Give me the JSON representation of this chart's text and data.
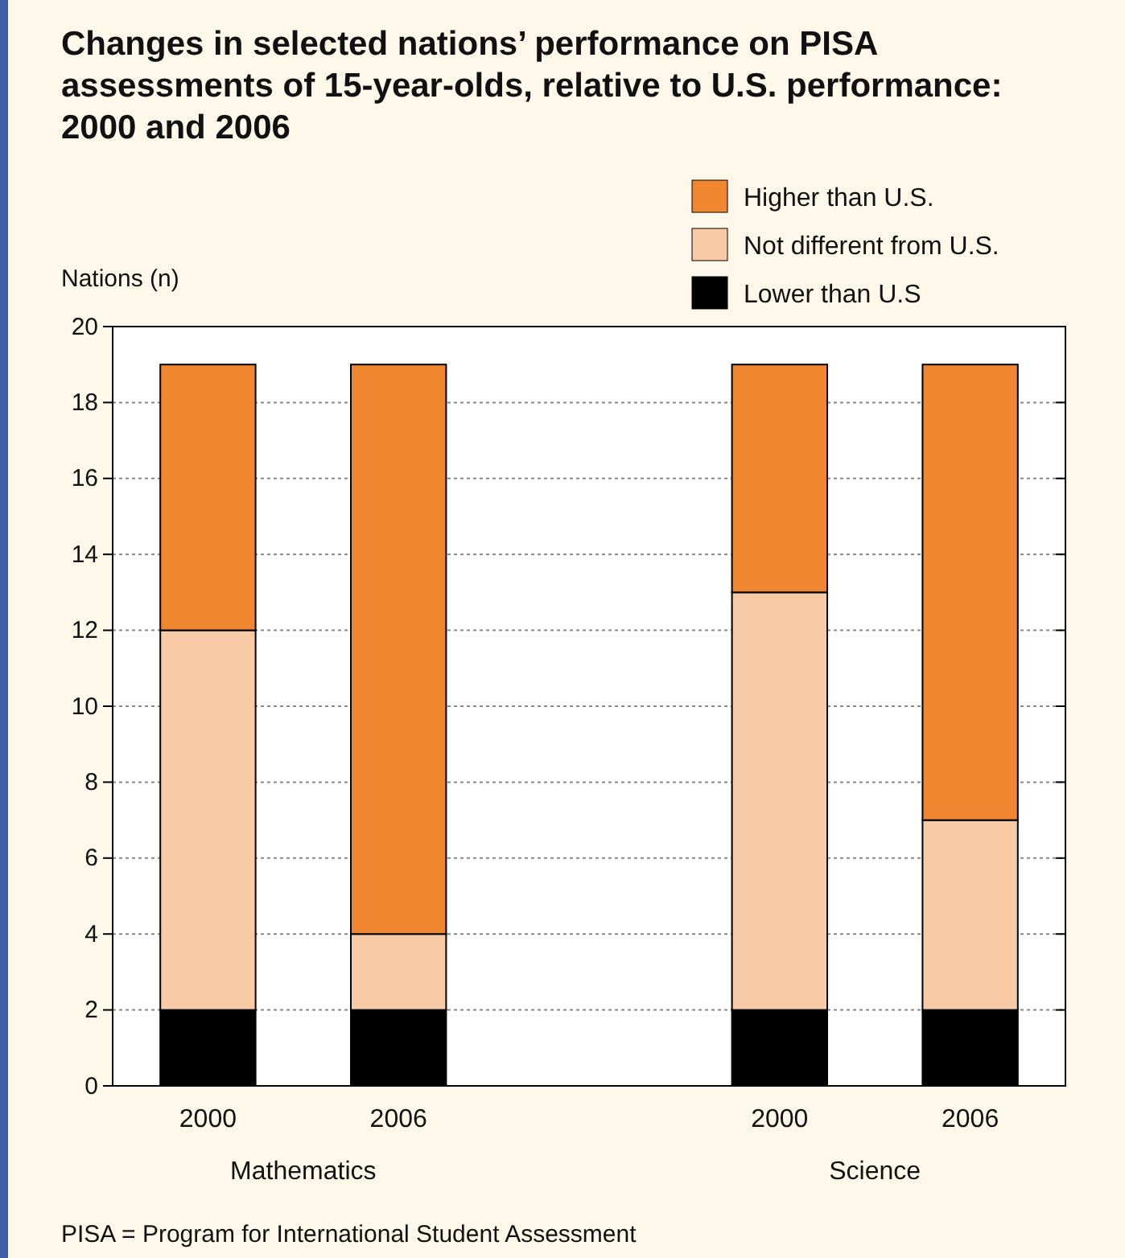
{
  "chart_data": {
    "type": "bar",
    "title": "Changes in selected nations’ performance on PISA assessments of 15-year-olds, relative to U.S. performance: 2000 and 2006",
    "ylabel": "Nations (n)",
    "categories": [
      "2000",
      "2006",
      null,
      "2000",
      "2006"
    ],
    "stacked": true,
    "series": [
      {
        "name": "Lower than U.S",
        "color": "#000000",
        "values": [
          2,
          2,
          null,
          2,
          2
        ]
      },
      {
        "name": "Not different from U.S.",
        "color": "#f8cba6",
        "values": [
          10,
          2,
          null,
          11,
          5
        ]
      },
      {
        "name": "Higher than U.S.",
        "color": "#f0862f",
        "values": [
          7,
          15,
          null,
          6,
          12
        ]
      }
    ],
    "ylim": [
      0,
      20
    ],
    "yticks": [
      0,
      2,
      4,
      6,
      8,
      10,
      12,
      14,
      16,
      18,
      20
    ],
    "grid": "y",
    "legend": "top right",
    "annotations": [
      "Mathematics",
      "Science",
      "PISA = Program for International Student Assessment"
    ]
  }
}
